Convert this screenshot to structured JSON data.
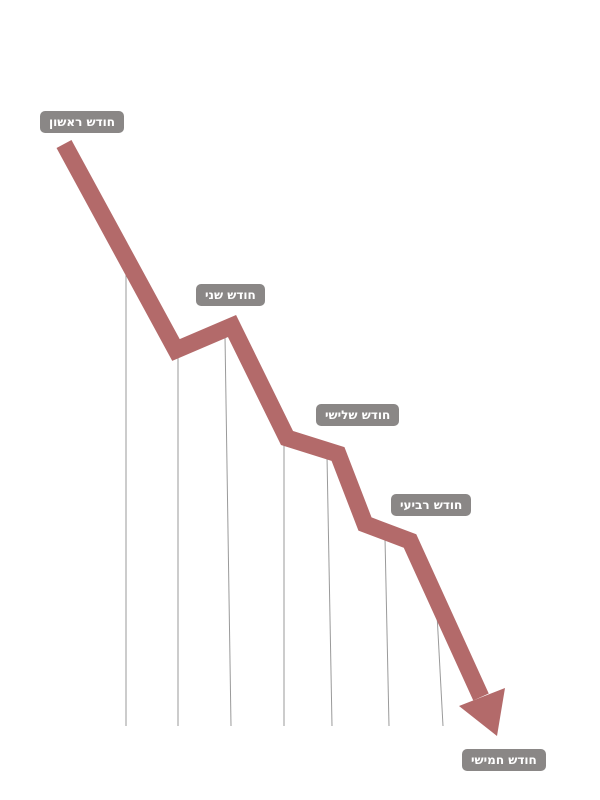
{
  "colors": {
    "arrow": "#b36a6a",
    "label_bg": "#8a8786",
    "label_text": "#ffffff",
    "guide_line": "#9a9a9a"
  },
  "arrow_shape": "descending zigzag arrow pointing down-right",
  "labels": [
    {
      "id": "month-1",
      "text": "חודש ראשון"
    },
    {
      "id": "month-2",
      "text": "חודש שני"
    },
    {
      "id": "month-3",
      "text": "חודש שלישי"
    },
    {
      "id": "month-4",
      "text": "חודש רביעי"
    },
    {
      "id": "month-5",
      "text": "חודש חמישי"
    }
  ]
}
